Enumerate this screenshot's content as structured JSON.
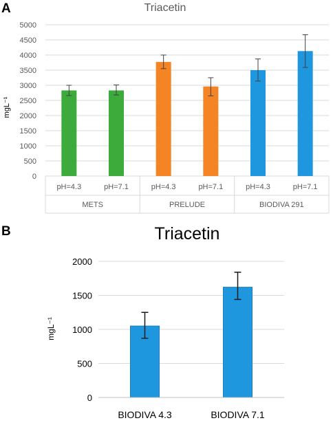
{
  "panels": {
    "a": {
      "label": "A"
    },
    "b": {
      "label": "B"
    }
  },
  "colors": {
    "green": "#3cab3c",
    "orange": "#f58424",
    "blue": "#1f97de",
    "grid": "#d9d9d9",
    "text": "#595959",
    "error": "#404040"
  },
  "chart_data": [
    {
      "type": "bar",
      "title": "Triacetin",
      "ylabel": "mgL⁻¹",
      "xlabel": "",
      "ylim": [
        0,
        5000
      ],
      "yticks": [
        0,
        500,
        1000,
        1500,
        2000,
        2500,
        3000,
        3500,
        4000,
        4500,
        5000
      ],
      "grid": true,
      "groups": [
        {
          "name": "METS",
          "color": "green",
          "bars": [
            {
              "label": "pH=4.3",
              "value": 2830,
              "err_low": 2660,
              "err_high": 3000
            },
            {
              "label": "pH=7.1",
              "value": 2830,
              "err_low": 2680,
              "err_high": 3010
            }
          ]
        },
        {
          "name": "PRELUDE",
          "color": "orange",
          "bars": [
            {
              "label": "pH=4.3",
              "value": 3770,
              "err_low": 3550,
              "err_high": 4000
            },
            {
              "label": "pH=7.1",
              "value": 2960,
              "err_low": 2650,
              "err_high": 3250
            }
          ]
        },
        {
          "name": "BIODIVA 291",
          "color": "blue",
          "bars": [
            {
              "label": "pH=4.3",
              "value": 3500,
              "err_low": 3140,
              "err_high": 3870
            },
            {
              "label": "pH=7.1",
              "value": 4130,
              "err_low": 3590,
              "err_high": 4670
            }
          ]
        }
      ]
    },
    {
      "type": "bar",
      "title": "Triacetin",
      "ylabel": "mgL⁻¹",
      "xlabel": "",
      "ylim": [
        0,
        2000
      ],
      "yticks": [
        0,
        500,
        1000,
        1500,
        2000
      ],
      "grid": true,
      "categories": [
        "BIODIVA 4.3",
        "BIODIVA 7.1"
      ],
      "values": [
        1050,
        1620
      ],
      "err_low": [
        870,
        1440
      ],
      "err_high": [
        1250,
        1840
      ],
      "color": "blue"
    }
  ]
}
